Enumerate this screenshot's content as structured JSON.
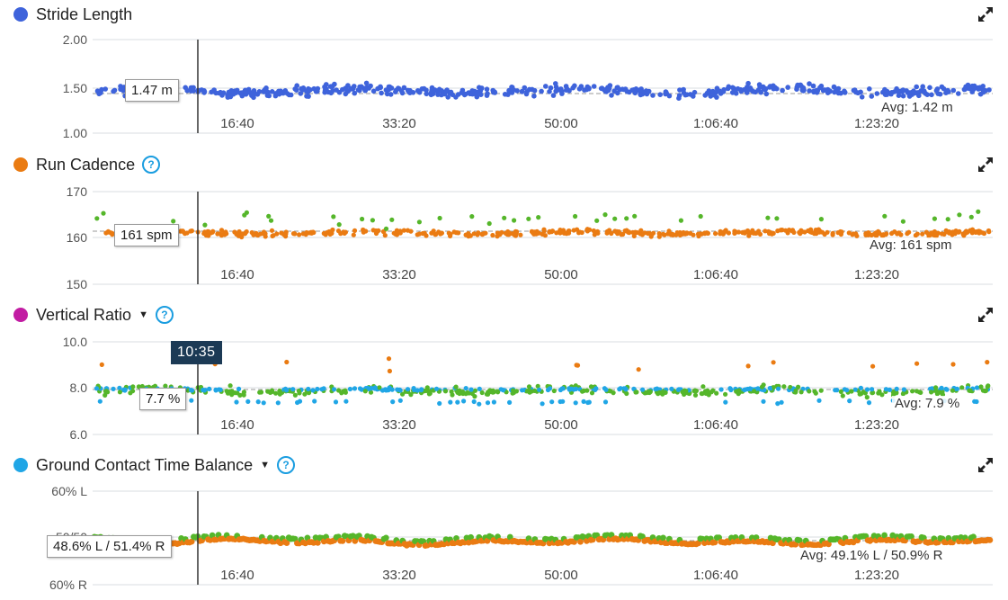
{
  "colors": {
    "blue": "#3e63db",
    "orange": "#ea7b12",
    "green": "#55b62a",
    "lightblue": "#20a6e6",
    "magenta": "#c21ca3",
    "help": "#1a9de0"
  },
  "x_ticks": [
    "16:40",
    "33:20",
    "50:00",
    "1:06:40",
    "1:23:20"
  ],
  "cursor_time": "10:35",
  "panels": [
    {
      "id": "stride",
      "title": "Stride Length",
      "dot_color": "#3e63db",
      "has_help": false,
      "has_dropdown": false,
      "y_ticks": [
        "2.00",
        "1.50",
        "1.00"
      ],
      "tooltip": "1.47 m",
      "average": "Avg: 1.42 m",
      "expand_icon": "expand-icon"
    },
    {
      "id": "cadence",
      "title": "Run Cadence",
      "dot_color": "#ea7b12",
      "has_help": true,
      "has_dropdown": false,
      "y_ticks": [
        "170",
        "160",
        "150"
      ],
      "tooltip": "161 spm",
      "average": "Avg: 161 spm",
      "expand_icon": "expand-icon"
    },
    {
      "id": "vratio",
      "title": "Vertical Ratio",
      "dot_color": "#c21ca3",
      "has_help": true,
      "has_dropdown": true,
      "y_ticks": [
        "10.0",
        "8.0",
        "6.0"
      ],
      "tooltip": "7.7 %",
      "average": "Avg: 7.9 %",
      "expand_icon": "expand-icon"
    },
    {
      "id": "gct",
      "title": "Ground Contact Time Balance",
      "dot_color": "#20a6e6",
      "has_help": true,
      "has_dropdown": true,
      "y_ticks": [
        "60% L",
        "50/50",
        "60% R"
      ],
      "tooltip": "48.6% L / 51.4% R",
      "average": "Avg: 49.1% L / 50.9% R",
      "expand_icon": "expand-icon"
    }
  ],
  "help_glyph": "?",
  "dropdown_glyph": "▼"
}
